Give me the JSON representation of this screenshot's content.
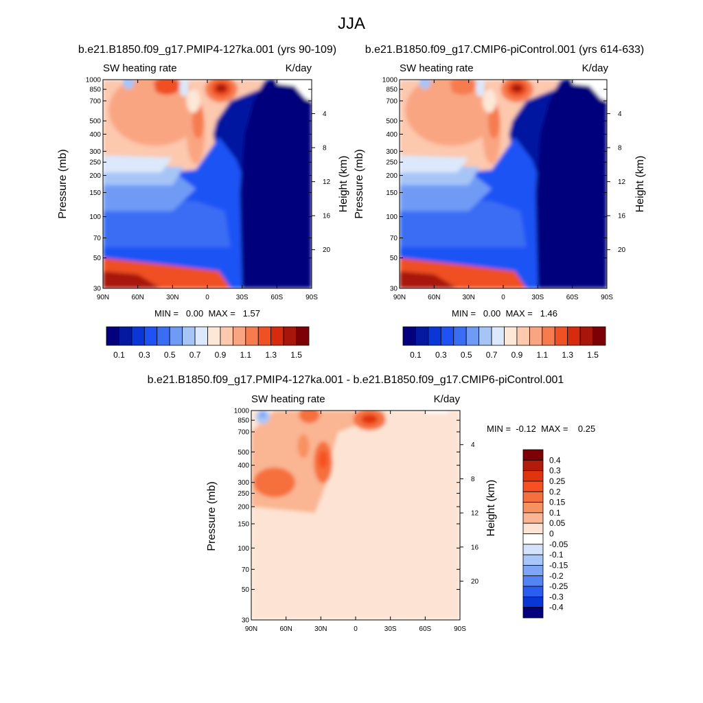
{
  "figure_title": "JJA",
  "chart_data": [
    {
      "type": "heatmap",
      "id": "p1",
      "title": "b.e21.B1850.f09_g17.PMIP4-127ka.001 (yrs 90-109)",
      "left_label": "SW heating rate",
      "right_label": "K/day",
      "ylabel": "Pressure (mb)",
      "ylabel_right": "Height (km)",
      "x_ticks": [
        "90N",
        "60N",
        "30N",
        "0",
        "30S",
        "60S",
        "90S"
      ],
      "x_range": [
        90,
        -90
      ],
      "y_ticks": [
        "30",
        "50",
        "70",
        "100",
        "150",
        "200",
        "250",
        "300",
        "400",
        "500",
        "700",
        "850",
        "1000"
      ],
      "y_range_mb": [
        1000,
        30
      ],
      "height_ticks": [
        "20",
        "16",
        "12",
        "8",
        "4"
      ],
      "stats": "MIN =   0.00  MAX =   1.57",
      "min": 0.0,
      "max": 1.57,
      "colorbar_orientation": "horizontal",
      "colorbar_labels": [
        "0.1",
        "0.3",
        "0.5",
        "0.7",
        "0.9",
        "1.1",
        "1.3",
        "1.5"
      ],
      "colorbar_colors": [
        "#02007d",
        "#0519a0",
        "#0b36d6",
        "#1f52f5",
        "#3a6df4",
        "#6f9bf5",
        "#a7c4f7",
        "#dce8fb",
        "#fde7d6",
        "#fcc8ae",
        "#f9a581",
        "#f67c50",
        "#ef5024",
        "#d72b0d",
        "#a8150a",
        "#7d0006"
      ]
    },
    {
      "type": "heatmap",
      "id": "p2",
      "title": "b.e21.B1850.f09_g17.CMIP6-piControl.001 (yrs 614-633)",
      "left_label": "SW heating rate",
      "right_label": "K/day",
      "ylabel": "Pressure (mb)",
      "ylabel_right": "Height (km)",
      "x_ticks": [
        "90N",
        "60N",
        "30N",
        "0",
        "30S",
        "60S",
        "90S"
      ],
      "x_range": [
        90,
        -90
      ],
      "y_ticks": [
        "30",
        "50",
        "70",
        "100",
        "150",
        "200",
        "250",
        "300",
        "400",
        "500",
        "700",
        "850",
        "1000"
      ],
      "y_range_mb": [
        1000,
        30
      ],
      "height_ticks": [
        "20",
        "16",
        "12",
        "8",
        "4"
      ],
      "stats": "MIN =   0.00  MAX =   1.46",
      "min": 0.0,
      "max": 1.46,
      "colorbar_orientation": "horizontal",
      "colorbar_labels": [
        "0.1",
        "0.3",
        "0.5",
        "0.7",
        "0.9",
        "1.1",
        "1.3",
        "1.5"
      ],
      "colorbar_colors": [
        "#02007d",
        "#0519a0",
        "#0b36d6",
        "#1f52f5",
        "#3a6df4",
        "#6f9bf5",
        "#a7c4f7",
        "#dce8fb",
        "#fde7d6",
        "#fcc8ae",
        "#f9a581",
        "#f67c50",
        "#ef5024",
        "#d72b0d",
        "#a8150a",
        "#7d0006"
      ]
    },
    {
      "type": "heatmap",
      "id": "p3",
      "title": "b.e21.B1850.f09_g17.PMIP4-127ka.001 - b.e21.B1850.f09_g17.CMIP6-piControl.001",
      "left_label": "SW heating rate",
      "right_label": "K/day",
      "ylabel": "Pressure (mb)",
      "ylabel_right": "Height (km)",
      "x_ticks": [
        "90N",
        "60N",
        "30N",
        "0",
        "30S",
        "60S",
        "90S"
      ],
      "x_range": [
        90,
        -90
      ],
      "y_ticks": [
        "30",
        "50",
        "70",
        "100",
        "150",
        "200",
        "250",
        "300",
        "400",
        "500",
        "700",
        "850",
        "1000"
      ],
      "y_range_mb": [
        1000,
        30
      ],
      "height_ticks": [
        "20",
        "16",
        "12",
        "8",
        "4"
      ],
      "stats": "MIN =  -0.12  MAX =    0.25",
      "min": -0.12,
      "max": 0.25,
      "colorbar_orientation": "vertical",
      "colorbar_labels": [
        "0.4",
        "0.3",
        "0.25",
        "0.2",
        "0.15",
        "0.1",
        "0.05",
        "0",
        "-0.05",
        "-0.1",
        "-0.15",
        "-0.2",
        "-0.25",
        "-0.3",
        "-0.4"
      ],
      "colorbar_colors": [
        "#7d0006",
        "#b31b0a",
        "#e0340f",
        "#f75123",
        "#f66f3e",
        "#f89160",
        "#fab592",
        "#fde3d3",
        "#ffffff",
        "#d4e3fb",
        "#a9c6f8",
        "#7ea6f5",
        "#5683f3",
        "#2b5ef0",
        "#0b36d6",
        "#02007d"
      ]
    }
  ]
}
